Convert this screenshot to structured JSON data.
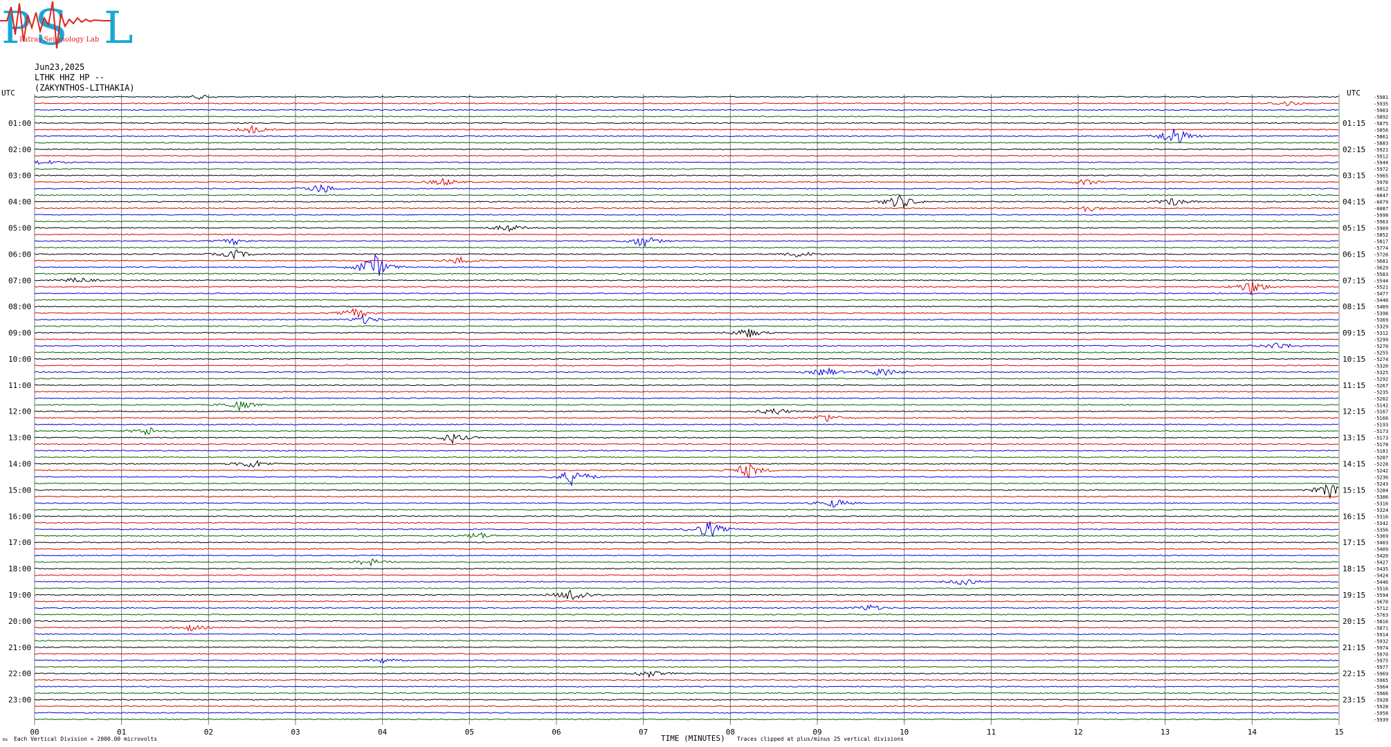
{
  "header": {
    "logo_text": "PSL",
    "logo_subtitle": "Patras Seismology Lab",
    "date": "Jun23,2025",
    "channel": "LTHK HHZ HP --",
    "site": "(ZAKYNTHOS-LITHAKIA)"
  },
  "footer": {
    "vertical_division": "Each Vertical Division = 2000.00 microvolts",
    "xlabel": "TIME (MINUTES)",
    "clip_note": "Traces clipped at plus/minus 25 vertical divisions",
    "corner_mark": "ms"
  },
  "colors": {
    "black": "#000000",
    "red": "#e00000",
    "blue": "#0000e0",
    "green": "#006400",
    "grid": "#7a7a7a"
  },
  "chart_data": {
    "type": "line",
    "title": "",
    "xlabel": "TIME (MINUTES)",
    "ylabel": "",
    "xlim": [
      0,
      15
    ],
    "x_ticks": [
      "00",
      "01",
      "02",
      "03",
      "04",
      "05",
      "06",
      "07",
      "08",
      "09",
      "10",
      "11",
      "12",
      "13",
      "14",
      "15"
    ],
    "left_label_top": "UTC",
    "right_label_top": "UTC",
    "left_hour_labels": [
      "01:00",
      "02:00",
      "03:00",
      "04:00",
      "05:00",
      "06:00",
      "07:00",
      "08:00",
      "09:00",
      "10:00",
      "11:00",
      "12:00",
      "13:00",
      "14:00",
      "15:00",
      "16:00",
      "17:00",
      "18:00",
      "19:00",
      "20:00",
      "21:00",
      "22:00",
      "23:00"
    ],
    "right_hour_labels": [
      "01:15",
      "02:15",
      "03:15",
      "04:15",
      "05:15",
      "06:15",
      "07:15",
      "08:15",
      "09:15",
      "10:15",
      "11:15",
      "12:15",
      "13:15",
      "14:15",
      "15:15",
      "16:15",
      "17:15",
      "18:15",
      "19:15",
      "20:15",
      "21:15",
      "22:15",
      "23:15"
    ],
    "trace_color_cycle": [
      "black",
      "red",
      "blue",
      "green"
    ],
    "trace_offsets": [
      -5981,
      -5935,
      -5903,
      -5892,
      -5875,
      -5856,
      -5861,
      -5883,
      -5921,
      -5912,
      -5944,
      -5972,
      -5965,
      -5976,
      -6012,
      -6047,
      -6079,
      -6087,
      -5998,
      -5963,
      -5909,
      -5852,
      -5817,
      -5774,
      -5726,
      -5681,
      -5629,
      -5583,
      -5544,
      -5521,
      -5477,
      -5448,
      -5409,
      -5398,
      -5369,
      -5329,
      -5312,
      -5299,
      -5270,
      -5255,
      -5274,
      -5320,
      -5325,
      -5292,
      -5267,
      -5235,
      -5202,
      -5142,
      -5167,
      -5166,
      -5193,
      -5173,
      -5173,
      -5178,
      -5181,
      -5207,
      -5228,
      -5242,
      -5236,
      -5243,
      -5284,
      -5306,
      -5316,
      -5324,
      -5316,
      -5342,
      -5356,
      -5369,
      -5403,
      -5409,
      -5420,
      -5427,
      -5435,
      -5424,
      -5446,
      -5516,
      -5594,
      -5670,
      -5712,
      -5763,
      -5816,
      -5871,
      -5914,
      -5932,
      -5974,
      -5970,
      -5975,
      -5977,
      -5969,
      -5965,
      -5964,
      -5966,
      -5928,
      -5928,
      -5958,
      -5939
    ],
    "events": [
      {
        "trace": 0,
        "minute": 1.9,
        "amp": 3
      },
      {
        "trace": 1,
        "minute": 14.4,
        "amp": 4
      },
      {
        "trace": 5,
        "minute": 2.5,
        "amp": 6
      },
      {
        "trace": 6,
        "minute": 13.1,
        "amp": 16
      },
      {
        "trace": 10,
        "minute": 0.1,
        "amp": 4
      },
      {
        "trace": 13,
        "minute": 4.7,
        "amp": 6
      },
      {
        "trace": 13,
        "minute": 12.1,
        "amp": 5
      },
      {
        "trace": 14,
        "minute": 3.3,
        "amp": 8
      },
      {
        "trace": 16,
        "minute": 9.95,
        "amp": 12
      },
      {
        "trace": 16,
        "minute": 13.1,
        "amp": 6
      },
      {
        "trace": 17,
        "minute": 12.1,
        "amp": 6
      },
      {
        "trace": 20,
        "minute": 5.45,
        "amp": 6
      },
      {
        "trace": 22,
        "minute": 7.0,
        "amp": 10
      },
      {
        "trace": 22,
        "minute": 2.3,
        "amp": 5
      },
      {
        "trace": 24,
        "minute": 2.3,
        "amp": 7
      },
      {
        "trace": 24,
        "minute": 8.8,
        "amp": 5
      },
      {
        "trace": 25,
        "minute": 4.9,
        "amp": 6
      },
      {
        "trace": 26,
        "minute": 3.9,
        "amp": 22
      },
      {
        "trace": 28,
        "minute": 0.5,
        "amp": 5
      },
      {
        "trace": 29,
        "minute": 14.0,
        "amp": 12
      },
      {
        "trace": 33,
        "minute": 3.7,
        "amp": 8
      },
      {
        "trace": 34,
        "minute": 3.8,
        "amp": 6
      },
      {
        "trace": 36,
        "minute": 8.2,
        "amp": 8
      },
      {
        "trace": 38,
        "minute": 14.3,
        "amp": 6
      },
      {
        "trace": 42,
        "minute": 9.1,
        "amp": 7
      },
      {
        "trace": 42,
        "minute": 9.75,
        "amp": 8
      },
      {
        "trace": 47,
        "minute": 2.35,
        "amp": 8
      },
      {
        "trace": 48,
        "minute": 8.5,
        "amp": 6
      },
      {
        "trace": 49,
        "minute": 9.1,
        "amp": 7
      },
      {
        "trace": 51,
        "minute": 1.3,
        "amp": 7
      },
      {
        "trace": 52,
        "minute": 4.8,
        "amp": 8
      },
      {
        "trace": 56,
        "minute": 2.5,
        "amp": 7
      },
      {
        "trace": 57,
        "minute": 8.2,
        "amp": 12
      },
      {
        "trace": 58,
        "minute": 6.2,
        "amp": 15
      },
      {
        "trace": 60,
        "minute": 14.9,
        "amp": 12
      },
      {
        "trace": 62,
        "minute": 9.2,
        "amp": 7
      },
      {
        "trace": 66,
        "minute": 7.75,
        "amp": 14
      },
      {
        "trace": 67,
        "minute": 5.1,
        "amp": 6
      },
      {
        "trace": 71,
        "minute": 3.85,
        "amp": 6
      },
      {
        "trace": 74,
        "minute": 10.7,
        "amp": 6
      },
      {
        "trace": 76,
        "minute": 6.2,
        "amp": 12
      },
      {
        "trace": 78,
        "minute": 9.6,
        "amp": 5
      },
      {
        "trace": 81,
        "minute": 1.8,
        "amp": 5
      },
      {
        "trace": 86,
        "minute": 4.0,
        "amp": 4
      },
      {
        "trace": 88,
        "minute": 7.05,
        "amp": 6
      }
    ]
  }
}
